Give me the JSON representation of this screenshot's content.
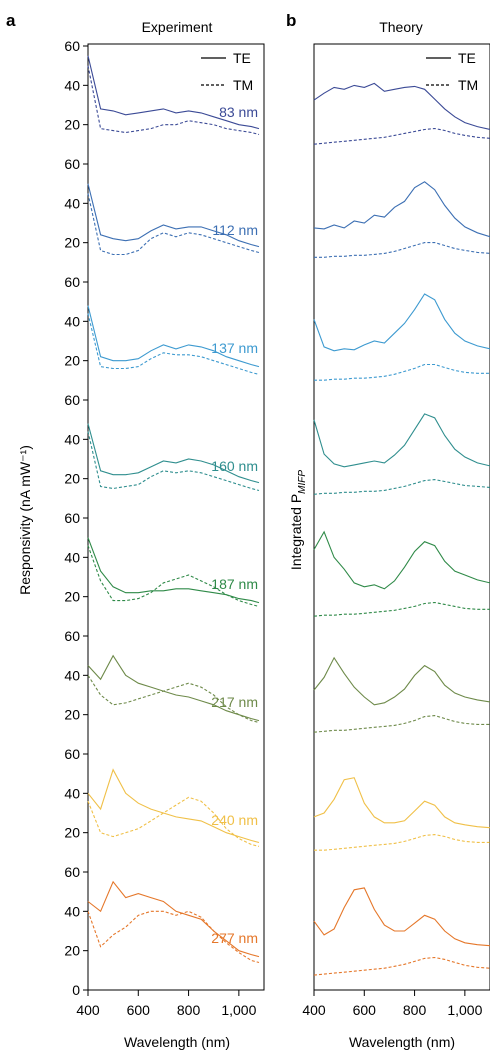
{
  "panel_a": {
    "letter": "a",
    "title": "Experiment",
    "ylabel": "Responsivity (nA mW⁻¹)"
  },
  "panel_b": {
    "letter": "b",
    "title": "Theory",
    "ylabel_main": "Integrated P",
    "ylabel_sub": "MIFP"
  },
  "legend": {
    "te": "TE",
    "tm": "TM"
  },
  "xlabel": "Wavelength (nm)",
  "x_ticks": [
    400,
    600,
    800,
    1000
  ],
  "x_tick_labels": [
    "400",
    "600",
    "800",
    "1,000"
  ],
  "y_tick_labels": [
    "0",
    "20",
    "40",
    "60"
  ],
  "thickness_labels": [
    "83 nm",
    "112 nm",
    "137 nm",
    "160 nm",
    "187 nm",
    "217 nm",
    "240 nm",
    "277 nm"
  ],
  "chart_data": [
    {
      "type": "line",
      "panel": "a",
      "title": "Experiment",
      "xlabel": "Wavelength (nm)",
      "ylabel": "Responsivity (nA mW⁻¹)",
      "xlim": [
        400,
        1100
      ],
      "ylim_per_stack": [
        0,
        60
      ],
      "stacks": [
        {
          "label": "83 nm",
          "color": "#3b4a96",
          "x": [
            400,
            450,
            500,
            550,
            600,
            650,
            700,
            750,
            800,
            850,
            900,
            950,
            1000,
            1050,
            1080
          ],
          "te": [
            55,
            28,
            27,
            25,
            26,
            27,
            28,
            26,
            27,
            26,
            24,
            22,
            20,
            19,
            18
          ],
          "tm": [
            50,
            18,
            17,
            16,
            17,
            18,
            20,
            20,
            22,
            21,
            20,
            18,
            17,
            16,
            15
          ]
        },
        {
          "label": "112 nm",
          "color": "#3c6fb3",
          "x": [
            400,
            450,
            500,
            550,
            600,
            650,
            700,
            750,
            800,
            850,
            900,
            950,
            1000,
            1050,
            1080
          ],
          "te": [
            50,
            24,
            22,
            21,
            22,
            26,
            29,
            27,
            28,
            28,
            26,
            24,
            21,
            19,
            18
          ],
          "tm": [
            45,
            16,
            14,
            14,
            16,
            22,
            25,
            23,
            25,
            24,
            22,
            20,
            18,
            16,
            15
          ]
        },
        {
          "label": "137 nm",
          "color": "#3d9ad0",
          "x": [
            400,
            450,
            500,
            550,
            600,
            650,
            700,
            750,
            800,
            850,
            900,
            950,
            1000,
            1050,
            1080
          ],
          "te": [
            48,
            22,
            20,
            20,
            21,
            25,
            28,
            26,
            28,
            27,
            25,
            22,
            20,
            18,
            17
          ],
          "tm": [
            44,
            17,
            16,
            16,
            17,
            21,
            24,
            23,
            23,
            22,
            20,
            18,
            16,
            14,
            13
          ]
        },
        {
          "label": "160 nm",
          "color": "#2f8e8e",
          "x": [
            400,
            450,
            500,
            550,
            600,
            650,
            700,
            750,
            800,
            850,
            900,
            950,
            1000,
            1050,
            1080
          ],
          "te": [
            48,
            24,
            22,
            22,
            23,
            26,
            29,
            28,
            30,
            29,
            27,
            24,
            21,
            19,
            18
          ],
          "tm": [
            44,
            16,
            15,
            16,
            17,
            21,
            24,
            23,
            24,
            23,
            21,
            19,
            17,
            15,
            14
          ]
        },
        {
          "label": "187 nm",
          "color": "#2f8a48",
          "x": [
            400,
            450,
            500,
            550,
            600,
            650,
            700,
            750,
            800,
            850,
            900,
            950,
            1000,
            1050,
            1080
          ],
          "te": [
            50,
            33,
            25,
            22,
            22,
            23,
            23,
            24,
            24,
            23,
            22,
            21,
            19,
            18,
            17
          ],
          "tm": [
            46,
            28,
            18,
            18,
            19,
            22,
            27,
            29,
            31,
            28,
            25,
            21,
            18,
            16,
            15
          ]
        },
        {
          "label": "217 nm",
          "color": "#6e8a4a",
          "x": [
            400,
            450,
            500,
            550,
            600,
            650,
            700,
            750,
            800,
            850,
            900,
            950,
            1000,
            1050,
            1080
          ],
          "te": [
            45,
            38,
            50,
            40,
            36,
            34,
            32,
            30,
            29,
            27,
            25,
            22,
            20,
            18,
            17
          ],
          "tm": [
            40,
            30,
            25,
            26,
            28,
            30,
            32,
            34,
            36,
            34,
            30,
            24,
            20,
            17,
            16
          ]
        },
        {
          "label": "240 nm",
          "color": "#f0c048",
          "x": [
            400,
            450,
            500,
            550,
            600,
            650,
            700,
            750,
            800,
            850,
            900,
            950,
            1000,
            1050,
            1080
          ],
          "te": [
            40,
            32,
            52,
            40,
            35,
            32,
            30,
            28,
            27,
            26,
            23,
            20,
            18,
            16,
            15
          ],
          "tm": [
            36,
            20,
            18,
            20,
            22,
            26,
            30,
            34,
            38,
            36,
            30,
            22,
            17,
            14,
            13
          ]
        },
        {
          "label": "277 nm",
          "color": "#e5772a",
          "x": [
            400,
            450,
            500,
            550,
            600,
            650,
            700,
            750,
            800,
            850,
            900,
            950,
            1000,
            1050,
            1080
          ],
          "te": [
            45,
            40,
            55,
            47,
            49,
            47,
            45,
            40,
            38,
            36,
            30,
            25,
            20,
            18,
            17
          ],
          "tm": [
            40,
            22,
            28,
            32,
            38,
            40,
            40,
            38,
            40,
            37,
            30,
            24,
            19,
            15,
            14
          ]
        }
      ]
    },
    {
      "type": "line",
      "panel": "b",
      "title": "Theory",
      "xlabel": "Wavelength (nm)",
      "ylabel": "Integrated P MIFP",
      "xlim": [
        400,
        1100
      ],
      "stacks": [
        {
          "label": "83 nm",
          "color": "#3b4a96",
          "x": [
            400,
            440,
            480,
            520,
            560,
            600,
            640,
            680,
            720,
            760,
            800,
            840,
            880,
            920,
            960,
            1000,
            1050,
            1100
          ],
          "te": [
            0.55,
            0.62,
            0.68,
            0.66,
            0.7,
            0.68,
            0.72,
            0.64,
            0.66,
            0.68,
            0.69,
            0.66,
            0.56,
            0.46,
            0.38,
            0.32,
            0.28,
            0.25
          ],
          "tm": [
            0.1,
            0.11,
            0.12,
            0.13,
            0.14,
            0.15,
            0.16,
            0.17,
            0.19,
            0.21,
            0.23,
            0.25,
            0.26,
            0.24,
            0.21,
            0.19,
            0.17,
            0.16
          ]
        },
        {
          "label": "112 nm",
          "color": "#3c6fb3",
          "x": [
            400,
            440,
            480,
            520,
            560,
            600,
            640,
            680,
            720,
            760,
            800,
            840,
            880,
            920,
            960,
            1000,
            1050,
            1100
          ],
          "te": [
            0.45,
            0.44,
            0.48,
            0.45,
            0.52,
            0.5,
            0.58,
            0.56,
            0.66,
            0.72,
            0.86,
            0.92,
            0.84,
            0.68,
            0.55,
            0.46,
            0.4,
            0.36
          ],
          "tm": [
            0.15,
            0.15,
            0.16,
            0.16,
            0.17,
            0.17,
            0.18,
            0.19,
            0.21,
            0.24,
            0.27,
            0.3,
            0.3,
            0.27,
            0.24,
            0.22,
            0.2,
            0.19
          ]
        },
        {
          "label": "137 nm",
          "color": "#3d9ad0",
          "x": [
            400,
            440,
            480,
            520,
            560,
            600,
            640,
            680,
            720,
            760,
            800,
            840,
            880,
            920,
            960,
            1000,
            1050,
            1100
          ],
          "te": [
            0.72,
            0.44,
            0.4,
            0.42,
            0.41,
            0.46,
            0.5,
            0.48,
            0.58,
            0.68,
            0.82,
            0.98,
            0.92,
            0.72,
            0.58,
            0.5,
            0.45,
            0.42
          ],
          "tm": [
            0.1,
            0.1,
            0.11,
            0.11,
            0.12,
            0.12,
            0.13,
            0.14,
            0.16,
            0.19,
            0.22,
            0.26,
            0.26,
            0.23,
            0.2,
            0.18,
            0.17,
            0.17
          ]
        },
        {
          "label": "160 nm",
          "color": "#2f8e8e",
          "x": [
            400,
            440,
            480,
            520,
            560,
            600,
            640,
            680,
            720,
            760,
            800,
            840,
            880,
            920,
            960,
            1000,
            1050,
            1100
          ],
          "te": [
            0.9,
            0.55,
            0.45,
            0.42,
            0.44,
            0.46,
            0.48,
            0.46,
            0.54,
            0.64,
            0.8,
            0.96,
            0.92,
            0.74,
            0.6,
            0.52,
            0.46,
            0.43
          ],
          "tm": [
            0.14,
            0.15,
            0.15,
            0.16,
            0.16,
            0.17,
            0.17,
            0.18,
            0.2,
            0.22,
            0.25,
            0.28,
            0.29,
            0.27,
            0.25,
            0.23,
            0.22,
            0.21
          ]
        },
        {
          "label": "187 nm",
          "color": "#2f8a48",
          "x": [
            400,
            440,
            480,
            520,
            560,
            600,
            640,
            680,
            720,
            760,
            800,
            840,
            880,
            920,
            960,
            1000,
            1050,
            1100
          ],
          "te": [
            0.78,
            0.96,
            0.7,
            0.58,
            0.44,
            0.4,
            0.42,
            0.38,
            0.46,
            0.6,
            0.76,
            0.86,
            0.82,
            0.66,
            0.56,
            0.52,
            0.47,
            0.44
          ],
          "tm": [
            0.1,
            0.11,
            0.11,
            0.12,
            0.12,
            0.13,
            0.14,
            0.15,
            0.16,
            0.18,
            0.2,
            0.23,
            0.24,
            0.22,
            0.2,
            0.18,
            0.17,
            0.17
          ]
        },
        {
          "label": "217 nm",
          "color": "#6e8a4a",
          "x": [
            400,
            440,
            480,
            520,
            560,
            600,
            640,
            680,
            720,
            760,
            800,
            840,
            880,
            920,
            960,
            1000,
            1050,
            1100
          ],
          "te": [
            0.55,
            0.68,
            0.88,
            0.72,
            0.58,
            0.48,
            0.4,
            0.42,
            0.48,
            0.56,
            0.7,
            0.8,
            0.74,
            0.6,
            0.52,
            0.48,
            0.45,
            0.43
          ],
          "tm": [
            0.12,
            0.13,
            0.14,
            0.14,
            0.15,
            0.16,
            0.17,
            0.18,
            0.19,
            0.21,
            0.24,
            0.28,
            0.29,
            0.26,
            0.23,
            0.21,
            0.2,
            0.2
          ]
        },
        {
          "label": "240 nm",
          "color": "#f0c048",
          "x": [
            400,
            440,
            480,
            520,
            560,
            600,
            640,
            680,
            720,
            760,
            800,
            840,
            880,
            920,
            960,
            1000,
            1050,
            1100
          ],
          "te": [
            0.46,
            0.5,
            0.64,
            0.84,
            0.86,
            0.6,
            0.46,
            0.4,
            0.4,
            0.42,
            0.52,
            0.62,
            0.58,
            0.46,
            0.4,
            0.38,
            0.36,
            0.35
          ],
          "tm": [
            0.12,
            0.12,
            0.13,
            0.14,
            0.15,
            0.16,
            0.17,
            0.18,
            0.19,
            0.21,
            0.24,
            0.27,
            0.28,
            0.26,
            0.23,
            0.21,
            0.2,
            0.2
          ]
        },
        {
          "label": "277 nm",
          "color": "#e5772a",
          "x": [
            400,
            440,
            480,
            520,
            560,
            600,
            640,
            680,
            720,
            760,
            800,
            840,
            880,
            920,
            960,
            1000,
            1050,
            1100
          ],
          "te": [
            0.6,
            0.46,
            0.52,
            0.74,
            0.92,
            0.94,
            0.72,
            0.56,
            0.5,
            0.5,
            0.58,
            0.66,
            0.62,
            0.5,
            0.42,
            0.38,
            0.36,
            0.35
          ],
          "tm": [
            0.05,
            0.06,
            0.07,
            0.08,
            0.09,
            0.1,
            0.11,
            0.12,
            0.14,
            0.16,
            0.19,
            0.22,
            0.23,
            0.21,
            0.18,
            0.15,
            0.13,
            0.12
          ]
        }
      ]
    }
  ]
}
